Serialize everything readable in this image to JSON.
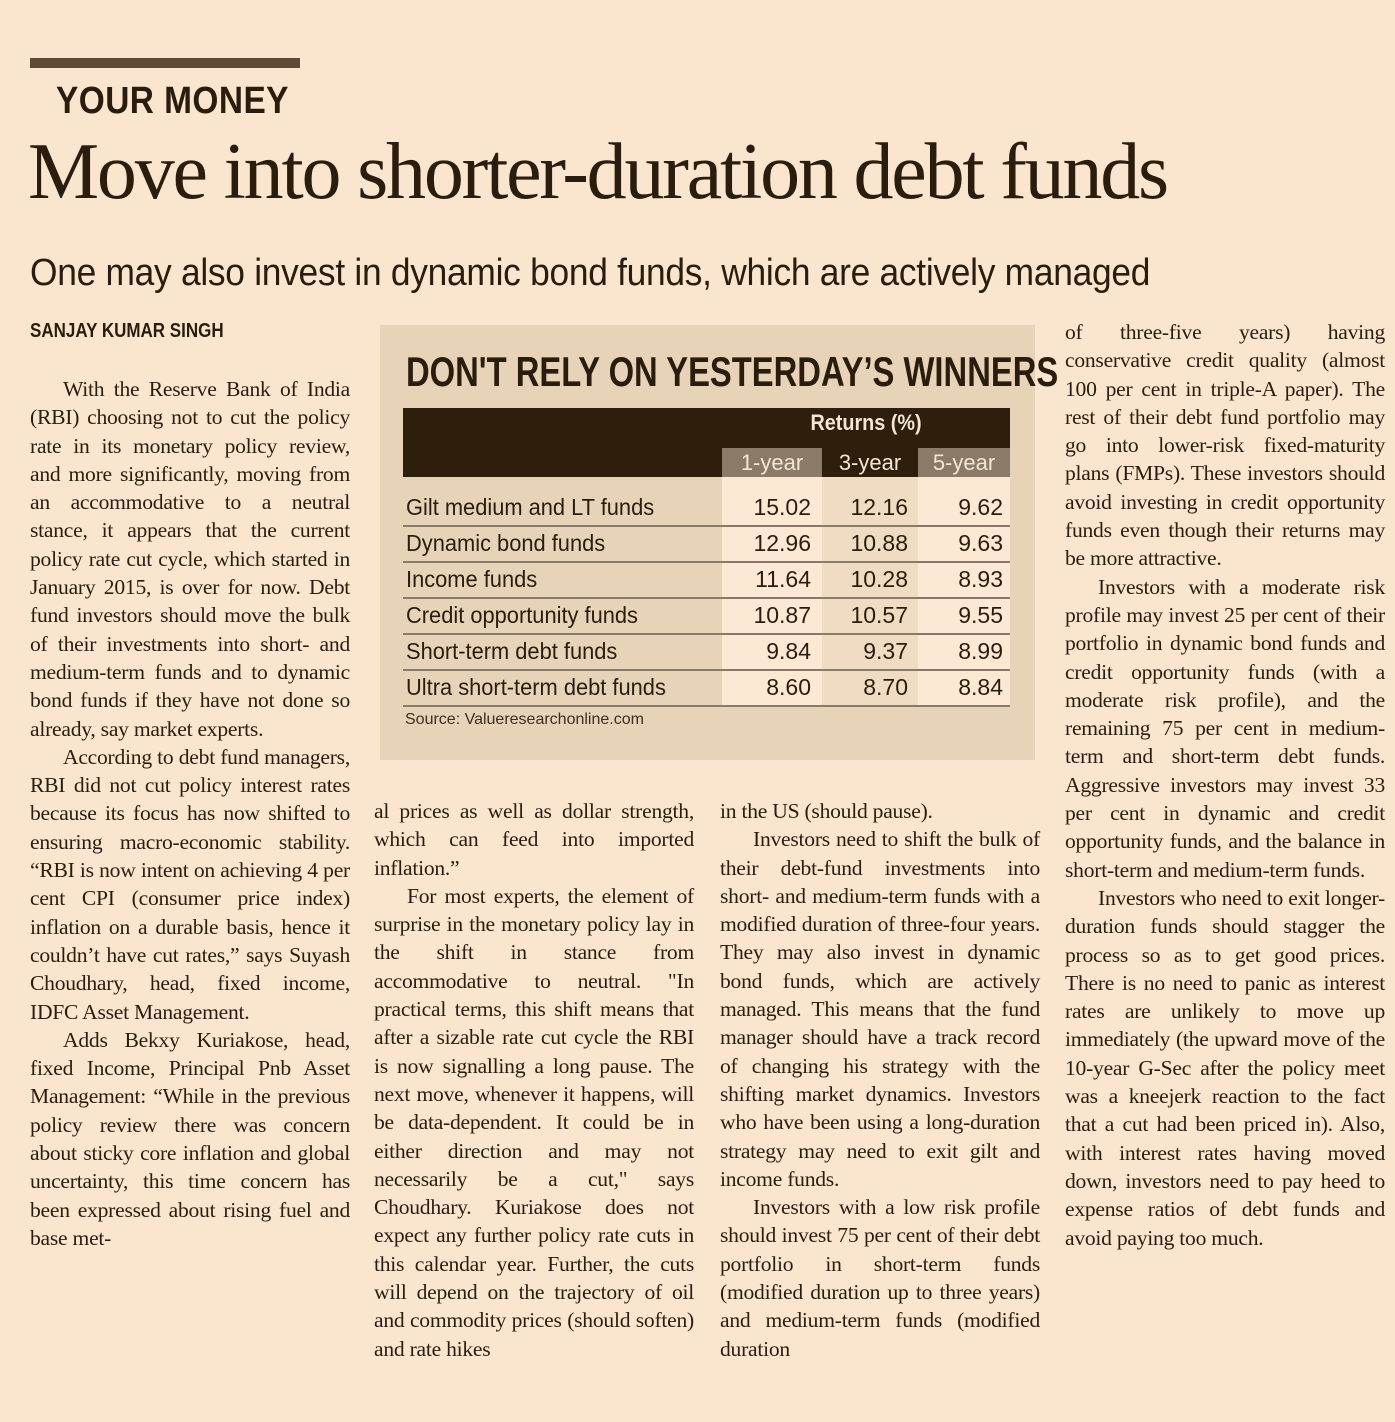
{
  "section": "YOUR MONEY",
  "headline": "Move into shorter-duration debt funds",
  "subhead": "One may also invest in dynamic bond funds, which are actively managed",
  "byline": "SANJAY KUMAR SINGH",
  "table": {
    "title": "DON'T RELY ON YESTERDAY’S WINNERS",
    "group_header": "Returns (%)",
    "columns": [
      "1-year",
      "3-year",
      "5-year"
    ],
    "rows": [
      {
        "label": "Gilt medium and LT funds",
        "values": [
          "15.02",
          "12.16",
          "9.62"
        ]
      },
      {
        "label": "Dynamic bond funds",
        "values": [
          "12.96",
          "10.88",
          "9.63"
        ]
      },
      {
        "label": "Income funds",
        "values": [
          "11.64",
          "10.28",
          "8.93"
        ]
      },
      {
        "label": "Credit opportunity funds",
        "values": [
          "10.87",
          "10.57",
          "9.55"
        ]
      },
      {
        "label": "Short-term debt funds",
        "values": [
          "9.84",
          "9.37",
          "8.99"
        ]
      },
      {
        "label": "Ultra short-term debt funds",
        "values": [
          "8.60",
          "8.70",
          "8.84"
        ]
      }
    ],
    "source": "Source: Valueresearchonline.com"
  },
  "columns": [
    [
      "With the Reserve Bank of India (RBI) choosing not to cut the policy rate in its monetary policy review, and more significantly, moving from an accommodative to a neutral stance, it appears that the current policy rate cut cycle, which started in January 2015, is over for now. Debt fund investors should move the bulk of their investments into short- and medium-term funds and to dynamic bond funds if they have not done so already, say market experts.",
      "According to debt fund managers, RBI did not cut policy interest rates because its focus has now shifted to ensuring macro-economic stability. “RBI is now intent on achieving 4 per cent CPI (consumer price index) inflation on a durable basis, hence it couldn’t have cut rates,” says Suyash Choudhary, head, fixed income, IDFC Asset Management.",
      "Adds Bekxy Kuriakose, head, fixed Income, Principal Pnb Asset Management: “While in the previous policy review there was concern about sticky core inflation and global uncertainty, this time concern has been expressed about rising fuel and base met-"
    ],
    [
      "al prices as well as dollar strength, which can feed into imported inflation.”",
      "For most experts, the element of surprise in the monetary policy lay in the shift in stance from accommodative to neutral. \"In practical terms, this shift means that after a sizable rate cut cycle the RBI is now signalling a long pause. The next move, whenever it happens, will be data-dependent. It could be in either direction and may not necessarily be a cut,\" says Choudhary. Kuriakose does not expect any further policy rate cuts in this calendar year. Further, the cuts will depend on the trajectory of oil and commodity prices (should soften) and rate hikes"
    ],
    [
      "in the US (should pause).",
      "Investors need to shift the bulk of their debt-fund investments into short- and medium-term funds with a modified duration of three-four years. They may also invest in dynamic bond funds, which are actively managed. This means that the fund manager should have a track record of changing his strategy with the shifting market dynamics. Investors who have been using a long-duration strategy may need to exit gilt and income funds.",
      "Investors with a low risk profile should invest 75 per cent of their debt portfolio in short-term funds (modified duration up to three years) and medium-term funds (modified duration"
    ],
    [
      "of three-five years) having conservative credit quality (almost 100 per cent in triple-A paper). The rest of their debt fund portfolio may go into lower-risk fixed-maturity plans (FMPs). These investors should avoid investing in credit opportunity funds even though their returns may be more attractive.",
      "Investors with a moderate risk profile may invest 25 per cent of their portfolio in dynamic bond funds and credit opportunity funds (with a moderate risk profile), and the remaining 75 per cent in medium-term and short-term debt funds. Aggressive investors may invest 33 per cent in dynamic and credit opportunity funds, and the balance in short-term and medium-term funds.",
      "Investors who need to exit longer-duration funds should stagger the process so as to get good prices. There is no need to panic as interest rates are unlikely to move up immediately (the upward move of the 10-year G-Sec after the policy meet was a kneejerk reaction to the fact that a cut had been priced in). Also, with interest rates having moved down, investors need to pay heed to expense ratios of debt funds and avoid paying too much."
    ]
  ],
  "colors": {
    "paper": "#fae6cf",
    "ink": "#2b1d0e",
    "box": "#e6d3b8",
    "table_header": "#2e1e0c",
    "subheader": "#8a7a68"
  }
}
